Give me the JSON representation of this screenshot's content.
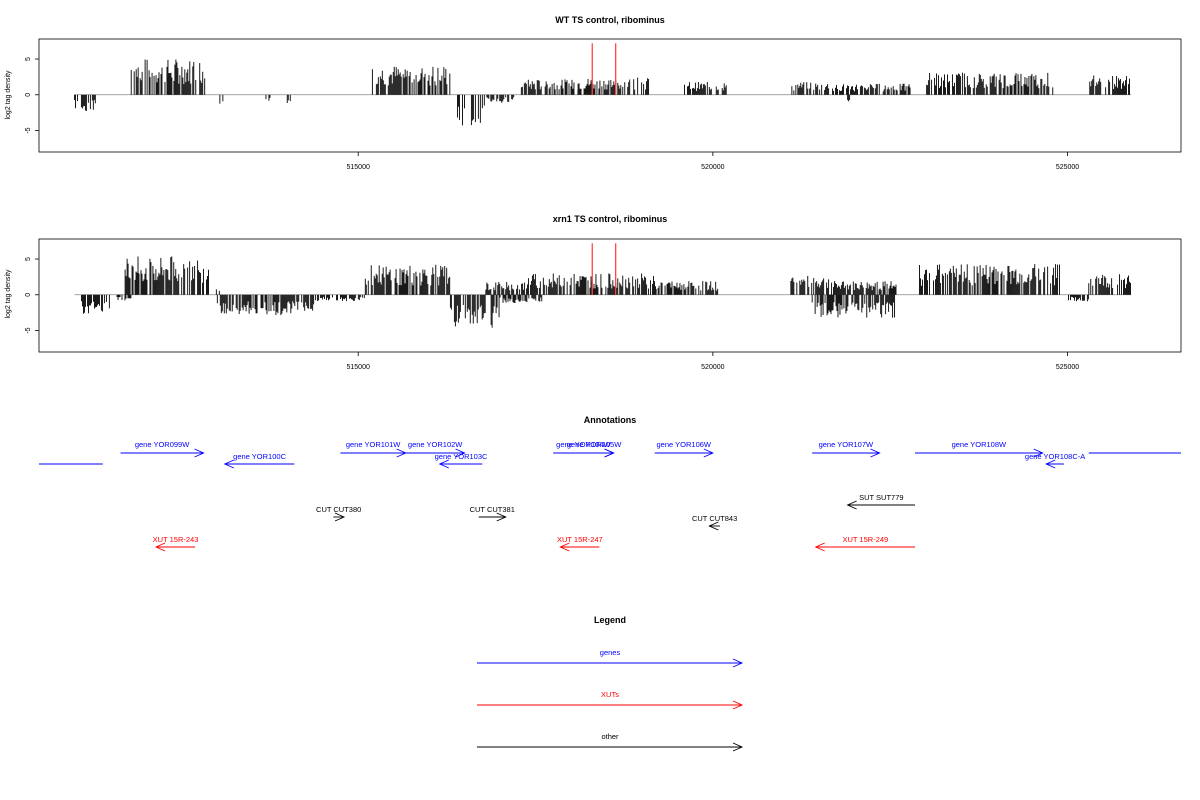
{
  "colors": {
    "genes": "#0000ff",
    "xuts": "#ff0000",
    "other": "#000000",
    "marker": "#ff4444",
    "axis": "#000000",
    "baseline": "#888888"
  },
  "chart_data": [
    {
      "type": "bar",
      "title": "WT TS control, ribominus",
      "ylabel": "log2 tag density",
      "xlim": [
        510500,
        526600
      ],
      "ylim": [
        -8,
        7.8
      ],
      "yticks": [
        -5,
        0,
        5
      ],
      "xticks": [
        515000,
        520000,
        525000
      ],
      "xtick_labels": [
        "515000",
        "520000",
        "525000"
      ],
      "markers": [
        518300,
        518630
      ],
      "plus_regions": [
        {
          "start": 511800,
          "end": 512850,
          "level": 4.2
        },
        {
          "start": 515200,
          "end": 516300,
          "level": 3.5
        },
        {
          "start": 517300,
          "end": 518100,
          "level": 1.8
        },
        {
          "start": 518100,
          "end": 519100,
          "level": 2.0
        },
        {
          "start": 519600,
          "end": 520200,
          "level": 1.5
        },
        {
          "start": 521100,
          "end": 521800,
          "level": 1.5
        },
        {
          "start": 521800,
          "end": 522800,
          "level": 1.3
        },
        {
          "start": 523000,
          "end": 524800,
          "level": 2.6
        },
        {
          "start": 525300,
          "end": 525900,
          "level": 2.3
        }
      ],
      "minus_regions": [
        {
          "start": 511000,
          "end": 511300,
          "level": -2.0
        },
        {
          "start": 513050,
          "end": 513100,
          "level": -1.5
        },
        {
          "start": 513700,
          "end": 513800,
          "level": -1.2
        },
        {
          "start": 514000,
          "end": 514050,
          "level": -1.5
        },
        {
          "start": 516400,
          "end": 516800,
          "level": -3.8
        },
        {
          "start": 516800,
          "end": 517200,
          "level": -1.0
        },
        {
          "start": 521900,
          "end": 521950,
          "level": -1.2
        }
      ]
    },
    {
      "type": "bar",
      "title": "xrn1 TS control, ribominus",
      "ylabel": "log2 tag density",
      "xlim": [
        510500,
        526600
      ],
      "ylim": [
        -8,
        7.8
      ],
      "yticks": [
        -5,
        0,
        5
      ],
      "xticks": [
        515000,
        520000,
        525000
      ],
      "xtick_labels": [
        "515000",
        "520000",
        "525000"
      ],
      "markers": [
        518300,
        518630
      ],
      "plus_regions": [
        {
          "start": 511700,
          "end": 512900,
          "level": 4.5
        },
        {
          "start": 513000,
          "end": 513050,
          "level": 1.0
        },
        {
          "start": 515100,
          "end": 516300,
          "level": 3.5
        },
        {
          "start": 516800,
          "end": 517400,
          "level": 1.5
        },
        {
          "start": 517400,
          "end": 518100,
          "level": 2.5
        },
        {
          "start": 518100,
          "end": 519200,
          "level": 2.5
        },
        {
          "start": 519200,
          "end": 520100,
          "level": 1.6
        },
        {
          "start": 521100,
          "end": 521700,
          "level": 2.2
        },
        {
          "start": 521700,
          "end": 522600,
          "level": 1.6
        },
        {
          "start": 522900,
          "end": 524900,
          "level": 3.6
        },
        {
          "start": 525300,
          "end": 525900,
          "level": 2.5
        }
      ],
      "minus_regions": [
        {
          "start": 511100,
          "end": 511500,
          "level": -2.5
        },
        {
          "start": 511600,
          "end": 511800,
          "level": -0.8
        },
        {
          "start": 513000,
          "end": 514400,
          "level": -2.5
        },
        {
          "start": 514400,
          "end": 515100,
          "level": -0.8
        },
        {
          "start": 516300,
          "end": 517000,
          "level": -4.0
        },
        {
          "start": 517000,
          "end": 517600,
          "level": -1.0
        },
        {
          "start": 521400,
          "end": 522600,
          "level": -2.8
        },
        {
          "start": 525000,
          "end": 525300,
          "level": -0.8
        }
      ]
    }
  ],
  "annotations": {
    "title": "Annotations",
    "xlim": [
      510500,
      526600
    ],
    "items": [
      {
        "label": "",
        "start": 510500,
        "end": 511400,
        "strand": "+",
        "category": "genes",
        "row": 1
      },
      {
        "label": "gene YOR099W",
        "start": 511650,
        "end": 512820,
        "strand": "+",
        "category": "genes",
        "row": 0
      },
      {
        "label": "gene YOR100C",
        "start": 513120,
        "end": 514100,
        "strand": "-",
        "category": "genes",
        "row": 1
      },
      {
        "label": "gene YOR101W",
        "start": 514750,
        "end": 515670,
        "strand": "+",
        "category": "genes",
        "row": 0
      },
      {
        "label": "gene YOR102W",
        "start": 515670,
        "end": 516500,
        "strand": "+",
        "category": "genes",
        "row": 0
      },
      {
        "label": "gene YOR103C",
        "start": 516150,
        "end": 516750,
        "strand": "-",
        "category": "genes",
        "row": 1
      },
      {
        "label": "gene YOR104W",
        "start": 517750,
        "end": 518600,
        "strand": "+",
        "category": "genes",
        "row": 0
      },
      {
        "label": "gene YOR105W",
        "start": 518050,
        "end": 518600,
        "strand": "+",
        "category": "genes",
        "row": 0
      },
      {
        "label": "gene YOR106W",
        "start": 519180,
        "end": 520000,
        "strand": "+",
        "category": "genes",
        "row": 0
      },
      {
        "label": "gene YOR107W",
        "start": 521400,
        "end": 522350,
        "strand": "+",
        "category": "genes",
        "row": 0
      },
      {
        "label": "gene YOR108W",
        "start": 522850,
        "end": 524650,
        "strand": "+",
        "category": "genes",
        "row": 0
      },
      {
        "label": "gene YOR108C-A",
        "start": 524700,
        "end": 524950,
        "strand": "-",
        "category": "genes",
        "row": 1
      },
      {
        "label": "",
        "start": 525300,
        "end": 526600,
        "strand": "+",
        "category": "genes",
        "row": 0
      },
      {
        "label": "SUT SUT779",
        "start": 521900,
        "end": 522850,
        "strand": "-",
        "category": "other",
        "row": 2
      },
      {
        "label": "CUT CUT380",
        "start": 514650,
        "end": 514800,
        "strand": "+",
        "category": "other",
        "row": 3
      },
      {
        "label": "CUT CUT381",
        "start": 516700,
        "end": 517080,
        "strand": "+",
        "category": "other",
        "row": 3
      },
      {
        "label": "CUT CUT843",
        "start": 519950,
        "end": 520100,
        "strand": "-",
        "category": "other",
        "row": 4
      },
      {
        "label": "XUT 15R-243",
        "start": 512150,
        "end": 512700,
        "strand": "-",
        "category": "xuts",
        "row": 5
      },
      {
        "label": "XUT 15R-247",
        "start": 517850,
        "end": 518400,
        "strand": "-",
        "category": "xuts",
        "row": 5
      },
      {
        "label": "XUT 15R-249",
        "start": 521450,
        "end": 522850,
        "strand": "-",
        "category": "xuts",
        "row": 5
      }
    ]
  },
  "legend": {
    "title": "Legend",
    "items": [
      {
        "label": "genes",
        "category": "genes"
      },
      {
        "label": "XUTs",
        "category": "xuts"
      },
      {
        "label": "other",
        "category": "other"
      }
    ]
  }
}
